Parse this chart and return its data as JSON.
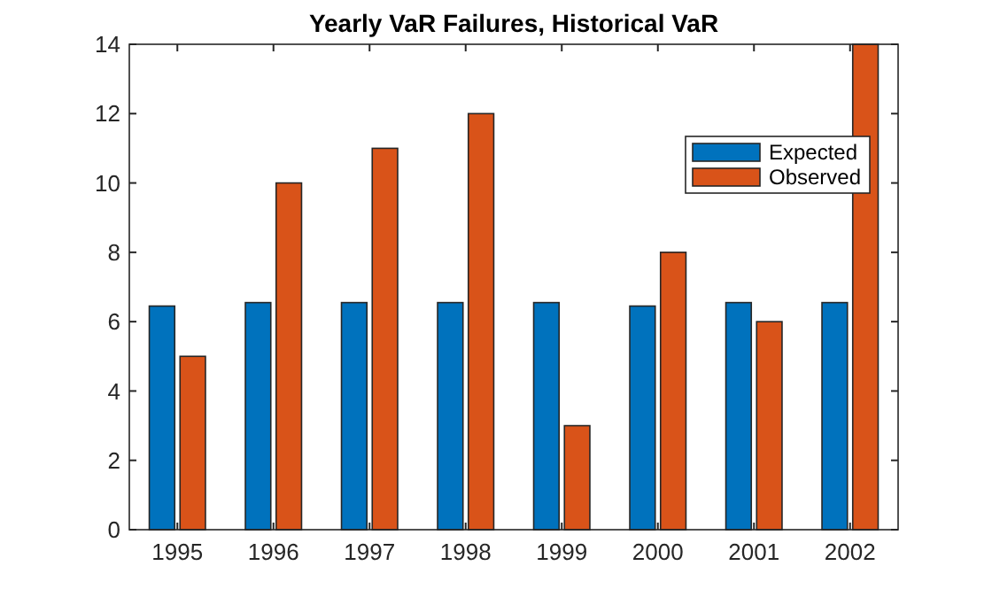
{
  "chart_data": {
    "type": "bar",
    "title": "Yearly VaR Failures, Historical VaR",
    "categories": [
      "1995",
      "1996",
      "1997",
      "1998",
      "1999",
      "2000",
      "2001",
      "2002"
    ],
    "series": [
      {
        "name": "Expected",
        "color": "#0072bd",
        "values": [
          6.45,
          6.55,
          6.55,
          6.55,
          6.55,
          6.45,
          6.55,
          6.55
        ]
      },
      {
        "name": "Observed",
        "color": "#d95319",
        "values": [
          5,
          10,
          11,
          12,
          3,
          8,
          6,
          14
        ]
      }
    ],
    "ylim": [
      0,
      14
    ],
    "yticks": [
      0,
      2,
      4,
      6,
      8,
      10,
      12,
      14
    ],
    "legend": "top right"
  }
}
